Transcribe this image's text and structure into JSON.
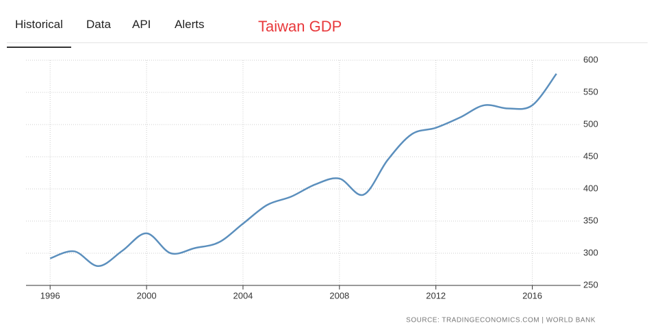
{
  "tabs": [
    "Historical",
    "Data",
    "API",
    "Alerts"
  ],
  "chart_data": {
    "type": "line",
    "title": "Taiwan GDP",
    "x": [
      1996,
      1997,
      1998,
      1999,
      2000,
      2001,
      2002,
      2003,
      2004,
      2005,
      2006,
      2007,
      2008,
      2009,
      2010,
      2011,
      2012,
      2013,
      2014,
      2015,
      2016,
      2017
    ],
    "values": [
      292,
      303,
      280,
      304,
      331,
      300,
      308,
      317,
      346,
      375,
      388,
      407,
      416,
      391,
      445,
      485,
      495,
      511,
      530,
      525,
      530,
      579
    ],
    "color": "#5b8fbd",
    "xlim": [
      1995,
      2018
    ],
    "xticks": [
      1996,
      2000,
      2004,
      2008,
      2012,
      2016
    ],
    "ylim": [
      250,
      600
    ],
    "yticks": [
      250,
      300,
      350,
      400,
      450,
      500,
      550,
      600
    ],
    "grid": true,
    "source": "SOURCE: TRADINGECONOMICS.COM | WORLD BANK"
  }
}
